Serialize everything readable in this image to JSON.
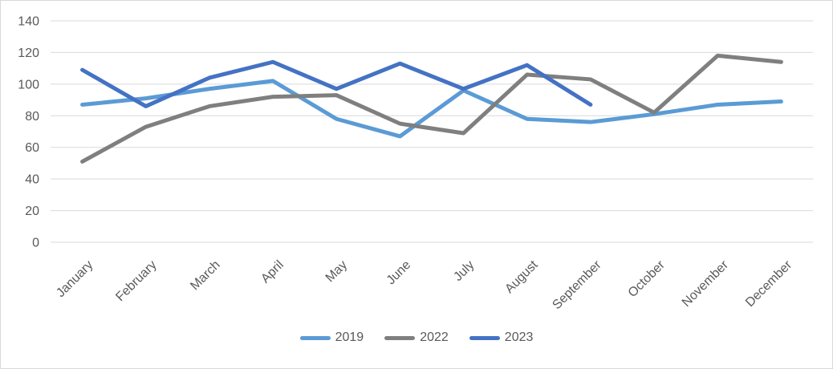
{
  "chart_data": {
    "type": "line",
    "title": "",
    "xlabel": "",
    "ylabel": "",
    "categories": [
      "January",
      "February",
      "March",
      "April",
      "May",
      "June",
      "July",
      "August",
      "September",
      "October",
      "November",
      "December"
    ],
    "series": [
      {
        "name": "2019",
        "color": "#5B9BD5",
        "values": [
          87,
          91,
          97,
          102,
          78,
          67,
          96,
          78,
          76,
          81,
          87,
          89
        ]
      },
      {
        "name": "2022",
        "color": "#7F7F7F",
        "values": [
          51,
          73,
          86,
          92,
          93,
          75,
          69,
          106,
          103,
          82,
          118,
          114
        ]
      },
      {
        "name": "2023",
        "color": "#4472C4",
        "values": [
          109,
          86,
          104,
          114,
          97,
          113,
          97,
          112,
          87,
          null,
          null,
          null
        ]
      }
    ],
    "ylim": [
      0,
      140
    ],
    "yticks": [
      0,
      20,
      40,
      60,
      80,
      100,
      120,
      140
    ],
    "grid": true,
    "legend_position": "bottom",
    "line_width": 5,
    "colors": {
      "gridline": "#D9D9D9",
      "axis_text": "#595959",
      "legend_text": "#595959",
      "frame_border": "#D9D9D9",
      "background": "#FFFFFF"
    }
  }
}
